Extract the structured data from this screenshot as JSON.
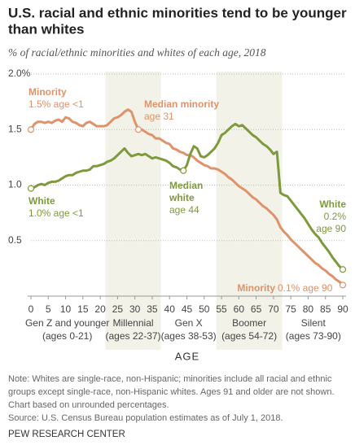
{
  "chart_data": {
    "type": "line",
    "title": [
      "U.S. racial and ethnic minorities tend to be younger",
      "than whites"
    ],
    "subtitle": "% of racial/ethnic minorities and whites of each age, 2018",
    "x_label": "AGE",
    "x": [
      0,
      1,
      2,
      3,
      4,
      5,
      6,
      7,
      8,
      9,
      10,
      11,
      12,
      13,
      14,
      15,
      16,
      17,
      18,
      19,
      20,
      21,
      22,
      23,
      24,
      25,
      26,
      27,
      28,
      29,
      30,
      31,
      32,
      33,
      34,
      35,
      36,
      37,
      38,
      39,
      40,
      41,
      42,
      43,
      44,
      45,
      46,
      47,
      48,
      49,
      50,
      51,
      52,
      53,
      54,
      55,
      56,
      57,
      58,
      59,
      60,
      61,
      62,
      63,
      64,
      65,
      66,
      67,
      68,
      69,
      70,
      71,
      72,
      73,
      74,
      75,
      76,
      77,
      78,
      79,
      80,
      81,
      82,
      83,
      84,
      85,
      86,
      87,
      88,
      89,
      90
    ],
    "xlim": [
      0,
      90
    ],
    "xticks": [
      0,
      5,
      10,
      15,
      20,
      25,
      30,
      35,
      40,
      45,
      50,
      55,
      60,
      65,
      70,
      75,
      80,
      85,
      90
    ],
    "ylim": [
      0,
      2
    ],
    "yticks": [
      0.5,
      {
        "value": 1,
        "label": "1.0"
      },
      1.5,
      {
        "value": 2,
        "label": "2.0%"
      }
    ],
    "grid": true,
    "series": [
      {
        "name": "Minority",
        "color": "#e0926a",
        "markers": [
          0,
          31,
          90
        ],
        "values": [
          1.5,
          1.55,
          1.57,
          1.57,
          1.56,
          1.57,
          1.56,
          1.58,
          1.59,
          1.57,
          1.61,
          1.6,
          1.57,
          1.56,
          1.54,
          1.53,
          1.56,
          1.57,
          1.55,
          1.53,
          1.53,
          1.53,
          1.54,
          1.57,
          1.6,
          1.61,
          1.63,
          1.66,
          1.68,
          1.66,
          1.57,
          1.5,
          1.5,
          1.48,
          1.46,
          1.45,
          1.42,
          1.42,
          1.4,
          1.38,
          1.37,
          1.33,
          1.32,
          1.3,
          1.29,
          1.27,
          1.27,
          1.25,
          1.22,
          1.2,
          1.18,
          1.17,
          1.15,
          1.15,
          1.14,
          1.12,
          1.1,
          1.07,
          1.05,
          1.02,
          0.99,
          0.97,
          0.95,
          0.92,
          0.89,
          0.87,
          0.84,
          0.81,
          0.79,
          0.76,
          0.73,
          0.69,
          0.62,
          0.58,
          0.55,
          0.51,
          0.48,
          0.45,
          0.42,
          0.39,
          0.36,
          0.33,
          0.3,
          0.28,
          0.25,
          0.23,
          0.2,
          0.18,
          0.15,
          0.13,
          0.1
        ]
      },
      {
        "name": "White",
        "color": "#7d9a3c",
        "markers": [
          0,
          44,
          90
        ],
        "values": [
          0.97,
          0.98,
          1.0,
          1.01,
          1.0,
          1.02,
          1.03,
          1.03,
          1.04,
          1.06,
          1.08,
          1.09,
          1.09,
          1.11,
          1.12,
          1.13,
          1.13,
          1.14,
          1.17,
          1.17,
          1.18,
          1.19,
          1.21,
          1.22,
          1.24,
          1.27,
          1.3,
          1.33,
          1.29,
          1.26,
          1.27,
          1.28,
          1.27,
          1.28,
          1.26,
          1.24,
          1.25,
          1.24,
          1.23,
          1.22,
          1.2,
          1.17,
          1.16,
          1.14,
          1.13,
          1.18,
          1.28,
          1.35,
          1.33,
          1.26,
          1.25,
          1.27,
          1.3,
          1.33,
          1.38,
          1.45,
          1.47,
          1.5,
          1.53,
          1.55,
          1.53,
          1.54,
          1.51,
          1.48,
          1.45,
          1.43,
          1.4,
          1.37,
          1.35,
          1.32,
          1.28,
          1.3,
          0.93,
          0.91,
          0.9,
          0.86,
          0.82,
          0.78,
          0.74,
          0.7,
          0.65,
          0.6,
          0.56,
          0.53,
          0.48,
          0.44,
          0.4,
          0.35,
          0.31,
          0.27,
          0.24
        ]
      }
    ],
    "generations": [
      {
        "name": "Gen Z and younger",
        "ages": "(ages 0-21)",
        "start": 0,
        "end": 21,
        "shaded": false
      },
      {
        "name": "Millennial",
        "ages": "(ages 22-37)",
        "start": 22,
        "end": 37,
        "shaded": true
      },
      {
        "name": "Gen X",
        "ages": "(ages 38-53)",
        "start": 38,
        "end": 53,
        "shaded": false
      },
      {
        "name": "Boomer",
        "ages": "(ages 54-72)",
        "start": 54,
        "end": 72,
        "shaded": true
      },
      {
        "name": "Silent",
        "ages": "(ages 73-90)",
        "start": 73,
        "end": 90,
        "shaded": false
      }
    ],
    "annotations": [
      "1.5% age <1",
      "Median minority",
      "age 31",
      "1.0% age <1",
      "Median",
      "white",
      "age 44",
      "0.2%",
      "age 90",
      "0.1% age 90"
    ]
  },
  "note": [
    "Note: Whites are single-race, non-Hispanic; minorities include all racial and ethnic",
    "groups except single-race, non-Hispanic whites. Ages 91 and older are not shown.",
    "Chart based on unrounded percentages."
  ],
  "source": "Source: U.S. Census Bureau population estimates as of July 1, 2018.",
  "credit": "PEW RESEARCH CENTER"
}
